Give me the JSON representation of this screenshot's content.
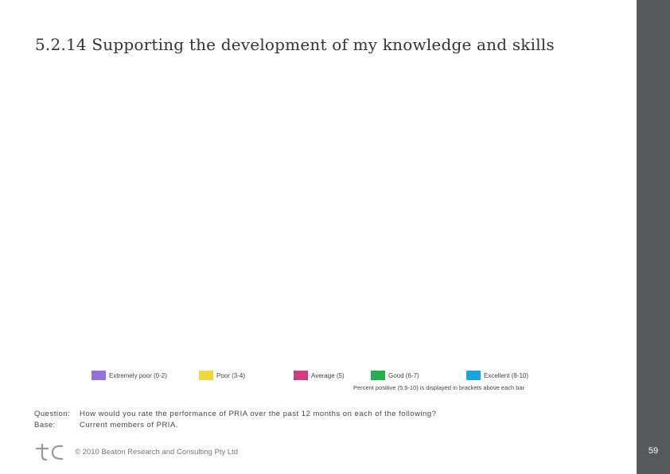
{
  "title": "5.2.14 Supporting the development of my knowledge and skills",
  "chart_data": {
    "type": "bar",
    "legend": [
      {
        "label": "Extremely poor (0-2)",
        "color": "#9370db"
      },
      {
        "label": "Poor (3-4)",
        "color": "#f5d442"
      },
      {
        "label": "Average (5)",
        "color": "#cc3f7e"
      },
      {
        "label": "Good (6-7)",
        "color": "#22b14c"
      },
      {
        "label": "Excellent (8-10)",
        "color": "#1ca3dc"
      }
    ],
    "note": "Percent positive (5.5-10) is displayed in brackets above each bar"
  },
  "question": {
    "label": "Question:",
    "text": "How would you rate the performance of PRIA over the past 12 months on each of the following?"
  },
  "base": {
    "label": "Base:",
    "text": "Current members of PRIA."
  },
  "footer": {
    "logo_icon": "tc-logo-icon",
    "copyright": "© 2010 Beaton Research and Consulting Pty Ltd",
    "page_number": "59"
  },
  "colors": {
    "sidebar": "#575a5d"
  }
}
